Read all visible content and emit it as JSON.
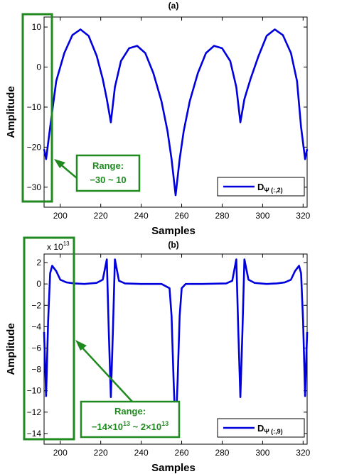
{
  "chart_data": [
    {
      "type": "line",
      "title": "(a)",
      "xlabel": "Samples",
      "ylabel": "Amplitude",
      "xlim": [
        192,
        322
      ],
      "ylim": [
        -35,
        12.5
      ],
      "xticks": [
        200,
        220,
        240,
        260,
        280,
        300,
        320
      ],
      "yticks": [
        -30,
        -20,
        -10,
        0,
        10
      ],
      "grid": false,
      "legend_placement": "bottom-right",
      "series": [
        {
          "name": "D",
          "name_subscript": "Ψ (:,2)",
          "color": "#0000dd",
          "x": [
            192,
            193,
            195,
            198,
            202,
            206,
            210,
            214,
            218,
            221,
            223,
            225,
            227,
            230,
            234,
            238,
            242,
            246,
            250,
            253,
            255,
            257,
            259,
            261,
            264,
            268,
            272,
            276,
            280,
            284,
            287,
            289,
            291,
            294,
            298,
            302,
            306,
            310,
            314,
            317,
            319,
            321,
            322
          ],
          "y": [
            -20.5,
            -23,
            -15,
            -3.5,
            3.5,
            8,
            9.4,
            7.8,
            2.8,
            -3,
            -8,
            -13.8,
            -5,
            1.5,
            4.7,
            5.3,
            3.5,
            -1.5,
            -8.5,
            -16,
            -23,
            -32,
            -23,
            -16,
            -8.5,
            -1.5,
            3.5,
            5.3,
            4.7,
            1.5,
            -5,
            -13.8,
            -8,
            -3,
            2.8,
            7.8,
            9.4,
            8,
            3.5,
            -3.5,
            -15,
            -23,
            -20.5
          ]
        }
      ],
      "annotation": {
        "line1": "Range:",
        "line2": "−30 ~ 10",
        "color": "#1f8a1f"
      }
    },
    {
      "type": "line",
      "title": "(b)",
      "xlabel": "Samples",
      "ylabel": "Amplitude",
      "exponent_label": "x 10",
      "exponent_power": "13",
      "xlim": [
        192,
        322
      ],
      "ylim": [
        -15,
        2.8
      ],
      "xticks": [
        200,
        220,
        240,
        260,
        280,
        300,
        320
      ],
      "yticks": [
        2,
        0,
        -2,
        -4,
        -6,
        -8,
        -10,
        -12,
        -14
      ],
      "grid": false,
      "legend_placement": "bottom-right",
      "series": [
        {
          "name": "D",
          "name_subscript": "Ψ (:,9)",
          "color": "#0000dd",
          "x": [
            192,
            193,
            194,
            195,
            196,
            198,
            200,
            203,
            207,
            212,
            218,
            221,
            223,
            224,
            225,
            226,
            227,
            229,
            232,
            240,
            250,
            254,
            255,
            256,
            257,
            258,
            259,
            260,
            262,
            270,
            282,
            285,
            287,
            288,
            289,
            290,
            291,
            293,
            296,
            302,
            307,
            311,
            314,
            316,
            318,
            319,
            320,
            321,
            322
          ],
          "y": [
            -4.5,
            -10.5,
            -3.5,
            1,
            1.7,
            1.2,
            0.4,
            0.15,
            0.05,
            0,
            0.1,
            0.4,
            2.3,
            -4.6,
            -10.6,
            -4.5,
            2.3,
            0.3,
            0.05,
            0,
            0,
            -0.4,
            -3,
            -9,
            -14,
            -9,
            -3,
            -0.4,
            0,
            0,
            0.05,
            0.3,
            2.3,
            -4.5,
            -10.6,
            -4.6,
            2.3,
            0.4,
            0.1,
            0,
            0.05,
            0.15,
            0.4,
            1.2,
            1.7,
            1,
            -3.5,
            -10.5,
            -4.5
          ]
        }
      ],
      "annotation": {
        "line1": "Range:",
        "line2_parts": [
          "−14×10",
          "13",
          " ~ 2×10",
          "13"
        ],
        "color": "#1f8a1f"
      }
    }
  ]
}
